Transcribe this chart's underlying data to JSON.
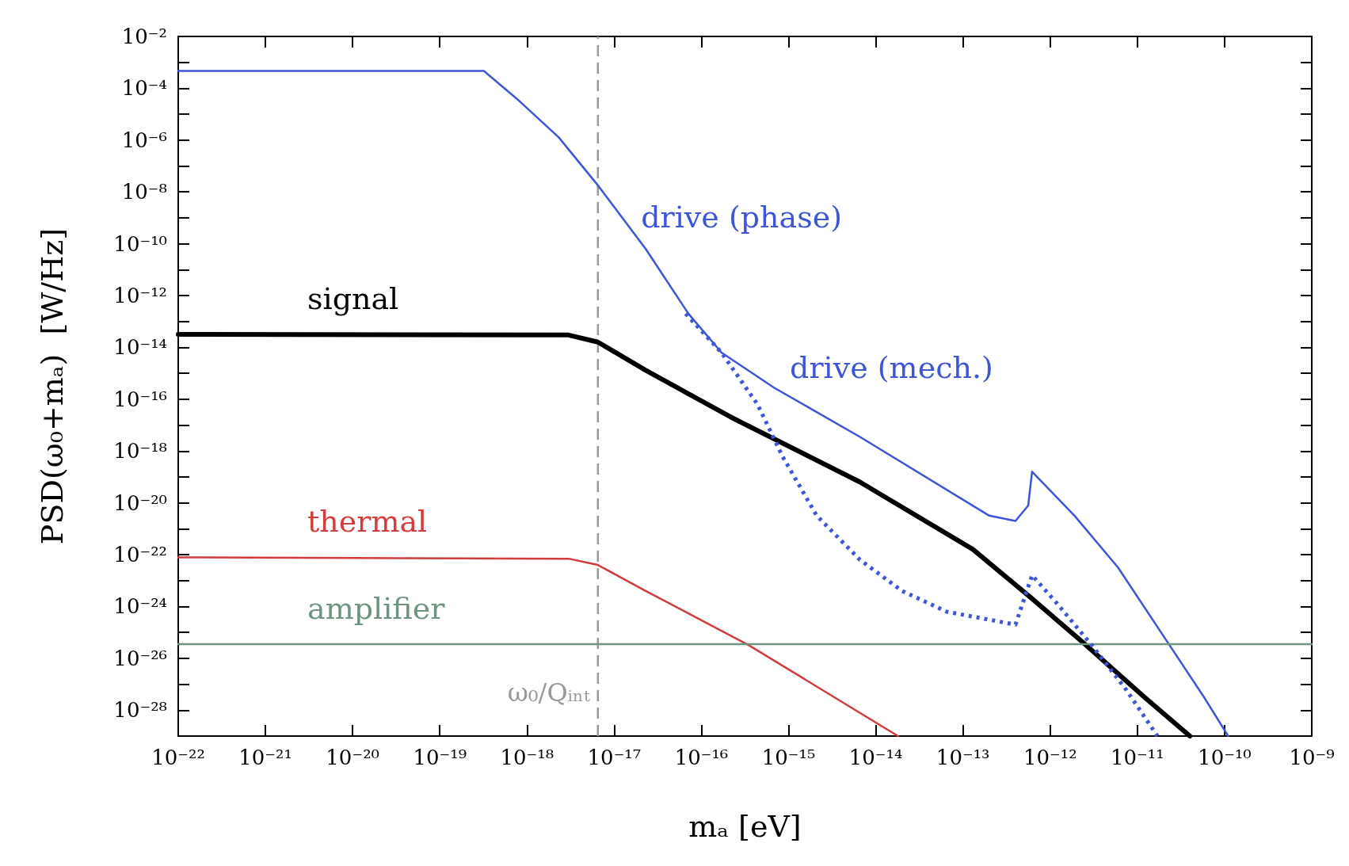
{
  "chart_data": {
    "type": "line",
    "xlabel": "mₐ [eV]",
    "ylabel": "PSD(ω₀+mₐ)  [W/Hz]",
    "log": "xy",
    "grid": false,
    "legend": false,
    "marker": "none",
    "xlim": [
      1e-22,
      1e-09
    ],
    "ylim": [
      1e-29,
      0.01
    ],
    "xticks": [
      {
        "value": 1e-22,
        "label": "10⁻²²"
      },
      {
        "value": 1e-21,
        "label": "10⁻²¹"
      },
      {
        "value": 1e-20,
        "label": "10⁻²⁰"
      },
      {
        "value": 1e-19,
        "label": "10⁻¹⁹"
      },
      {
        "value": 1e-18,
        "label": "10⁻¹⁸"
      },
      {
        "value": 1e-17,
        "label": "10⁻¹⁷"
      },
      {
        "value": 1e-16,
        "label": "10⁻¹⁶"
      },
      {
        "value": 1e-15,
        "label": "10⁻¹⁵"
      },
      {
        "value": 1e-14,
        "label": "10⁻¹⁴"
      },
      {
        "value": 1e-13,
        "label": "10⁻¹³"
      },
      {
        "value": 1e-12,
        "label": "10⁻¹²"
      },
      {
        "value": 1e-11,
        "label": "10⁻¹¹"
      },
      {
        "value": 1e-10,
        "label": "10⁻¹⁰"
      },
      {
        "value": 1e-09,
        "label": "10⁻⁹"
      }
    ],
    "yticks": [
      {
        "value": 1e-28,
        "label": "10⁻²⁸"
      },
      {
        "value": 1e-27,
        "label": null
      },
      {
        "value": 1e-26,
        "label": "10⁻²⁶"
      },
      {
        "value": 1e-25,
        "label": null
      },
      {
        "value": 1e-24,
        "label": "10⁻²⁴"
      },
      {
        "value": 1e-23,
        "label": null
      },
      {
        "value": 1e-22,
        "label": "10⁻²²"
      },
      {
        "value": 1e-21,
        "label": null
      },
      {
        "value": 1e-20,
        "label": "10⁻²⁰"
      },
      {
        "value": 1e-19,
        "label": null
      },
      {
        "value": 1e-18,
        "label": "10⁻¹⁸"
      },
      {
        "value": 1e-17,
        "label": null
      },
      {
        "value": 1e-16,
        "label": "10⁻¹⁶"
      },
      {
        "value": 1e-15,
        "label": null
      },
      {
        "value": 1e-14,
        "label": "10⁻¹⁴"
      },
      {
        "value": 1e-13,
        "label": null
      },
      {
        "value": 1e-12,
        "label": "10⁻¹²"
      },
      {
        "value": 1e-11,
        "label": null
      },
      {
        "value": 1e-10,
        "label": "10⁻¹⁰"
      },
      {
        "value": 1e-09,
        "label": null
      },
      {
        "value": 1e-08,
        "label": "10⁻⁸"
      },
      {
        "value": 1e-07,
        "label": null
      },
      {
        "value": 1e-06,
        "label": "10⁻⁶"
      },
      {
        "value": 1e-05,
        "label": null
      },
      {
        "value": 0.0001,
        "label": "10⁻⁴"
      },
      {
        "value": 0.001,
        "label": null
      },
      {
        "value": 0.01,
        "label": "10⁻²"
      }
    ],
    "ref_lines": [
      {
        "axis": "x",
        "value": 6.5e-18,
        "label": "ω₀/Qᵢₙₜ",
        "color": "#999999",
        "line_style": "dashed"
      }
    ],
    "annotations": [
      {
        "text": "drive (phase)",
        "x": 2.3e-17,
        "y": 6.3e-11
      },
      {
        "text": "drive (mech.)",
        "x": 6.8e-16,
        "y": 2.8e-16
      }
    ],
    "series": [
      {
        "color": "#3d55d6",
        "line_style": "solid",
        "x": [
          1e-22,
          3.2e-19,
          7.6e-19,
          2.3e-18,
          6.5e-18,
          2.3e-17,
          7.1e-17,
          1.7e-16,
          6.8e-16,
          6.6e-15,
          2e-13,
          4e-13,
          5.6e-13,
          6.2e-13,
          1.9e-12,
          6e-12,
          2.3e-11,
          5.8e-11,
          1.1e-10
        ],
        "values": [
          0.00047,
          0.00047,
          4e-05,
          1.3e-06,
          1.8e-08,
          6.3e-11,
          2e-13,
          6.3e-15,
          2.8e-16,
          3.5e-18,
          3.2e-21,
          2e-21,
          7.9e-21,
          1.6e-19,
          3.2e-21,
          3.2e-23,
          3.5e-26,
          3.2e-28,
          1e-29
        ]
      },
      {
        "name": "signal",
        "color": "#000000",
        "line_style": "solid",
        "x": [
          1e-22,
          3e-18,
          6.5e-18,
          2.3e-17,
          2.2e-16,
          6.6e-15,
          1.3e-13,
          6.2e-13,
          2.4e-12,
          1.2e-11,
          4e-11
        ],
        "values": [
          3.2e-14,
          3e-14,
          1.6e-14,
          1.3e-15,
          2e-17,
          6.3e-20,
          1.6e-22,
          2e-24,
          4e-26,
          3.2e-28,
          1e-29
        ]
      },
      {
        "name": "thermal",
        "color": "#d23c3c",
        "line_style": "solid",
        "x": [
          1e-22,
          3e-18,
          6.5e-18,
          2.3e-17,
          3.5e-16,
          1.8e-14
        ],
        "values": [
          7.9e-23,
          7e-23,
          4e-23,
          4e-24,
          3.2e-26,
          1e-29
        ]
      },
      {
        "name": "amplifier",
        "color": "#6e9480",
        "line_style": "solid",
        "x": [
          1e-22,
          1e-09
        ],
        "values": [
          3.5e-26,
          3.5e-26
        ]
      },
      {
        "color": "#3d55d6",
        "line_style": "dotted",
        "x": [
          6.6e-17,
          1.7e-16,
          4.4e-16,
          8.5e-16,
          2.1e-15,
          6.6e-15,
          2e-14,
          6.5e-14,
          4e-13,
          6.2e-13,
          1.2e-12,
          3e-12,
          7.4e-12,
          1.7e-11
        ],
        "values": [
          2e-13,
          6.3e-15,
          6.3e-17,
          6.3e-19,
          3.2e-21,
          6.3e-23,
          4e-24,
          6.3e-25,
          2e-25,
          1.6e-23,
          1.3e-24,
          3.2e-26,
          6.3e-28,
          1e-29
        ]
      }
    ]
  }
}
